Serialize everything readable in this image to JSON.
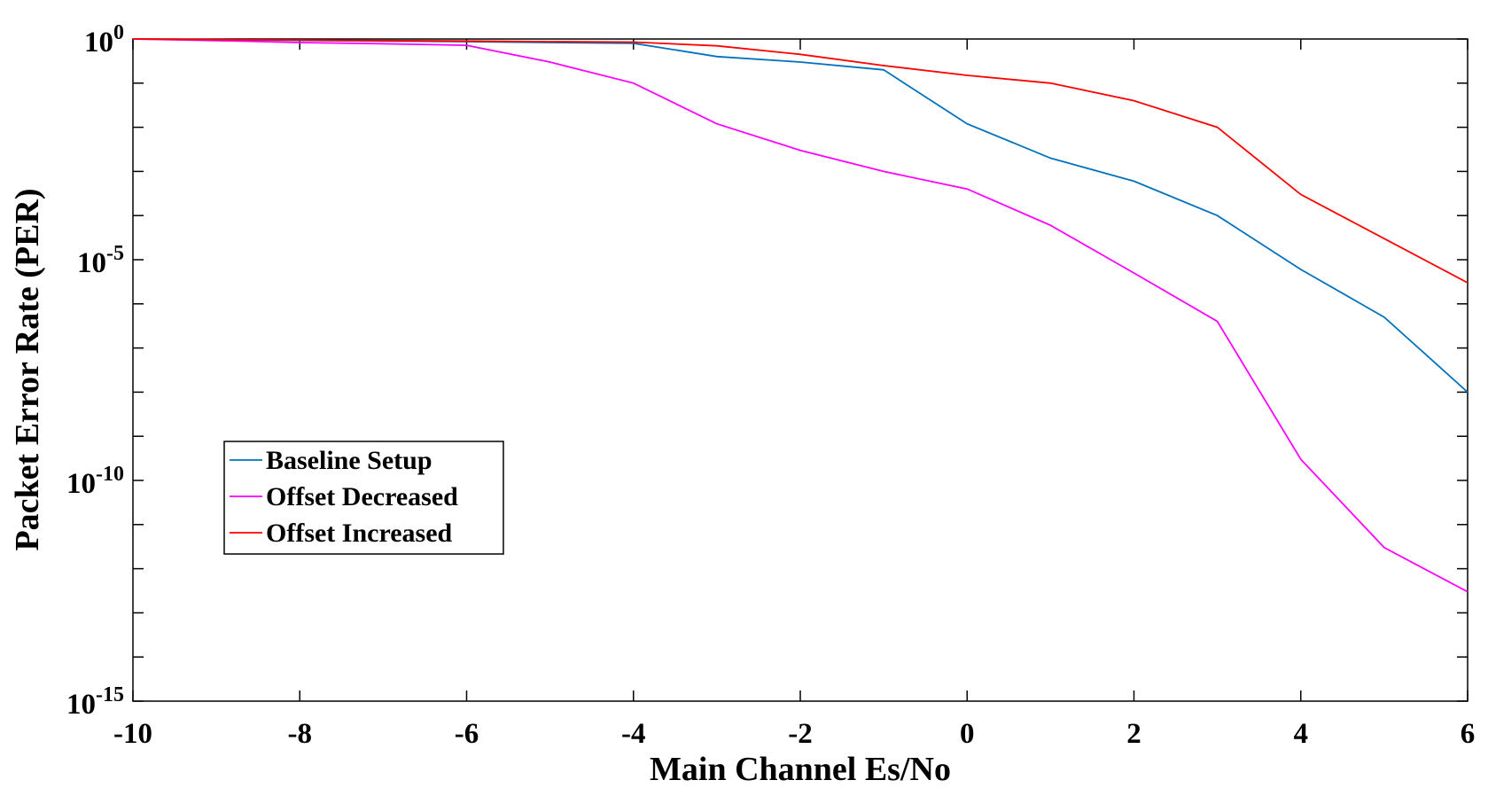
{
  "chart_data": {
    "type": "line",
    "xlabel": "Main Channel Es/No",
    "ylabel": "Packet Error Rate (PER)",
    "xlim": [
      -10,
      6
    ],
    "ylim": [
      1e-15,
      1
    ],
    "yscale": "log",
    "grid": false,
    "legend_position": "middle-left",
    "x_ticks": [
      "-10",
      "-8",
      "-6",
      "-4",
      "-2",
      "0",
      "2",
      "4",
      "6"
    ],
    "y_ticks": [
      {
        "base": "10",
        "exp": "0"
      },
      {
        "base": "10",
        "exp": "-5"
      },
      {
        "base": "10",
        "exp": "-10"
      },
      {
        "base": "10",
        "exp": "-15"
      }
    ],
    "x": [
      -10,
      -9,
      -8,
      -7,
      -6,
      -5,
      -4,
      -3,
      -2,
      -1,
      0,
      1,
      2,
      3,
      4,
      5,
      6
    ],
    "series": [
      {
        "name": "Baseline Setup",
        "color": "#0072BD",
        "values": [
          1,
          0.97,
          0.93,
          0.9,
          0.87,
          0.83,
          0.8,
          0.4,
          0.3,
          0.2,
          0.012,
          0.002,
          0.0006,
          0.0001,
          6e-06,
          5e-07,
          1e-08
        ]
      },
      {
        "name": "Offset Decreased",
        "color": "#FF00FF",
        "values": [
          1,
          0.92,
          0.83,
          0.78,
          0.72,
          0.3,
          0.1,
          0.012,
          0.003,
          0.001,
          0.0004,
          6e-05,
          5e-06,
          4e-07,
          3e-10,
          3e-12,
          3e-13
        ]
      },
      {
        "name": "Offset Increased",
        "color": "#FF0000",
        "values": [
          1,
          0.97,
          0.95,
          0.92,
          0.9,
          0.87,
          0.85,
          0.7,
          0.45,
          0.25,
          0.15,
          0.1,
          0.04,
          0.01,
          0.0003,
          3e-05,
          3e-06
        ]
      }
    ]
  }
}
